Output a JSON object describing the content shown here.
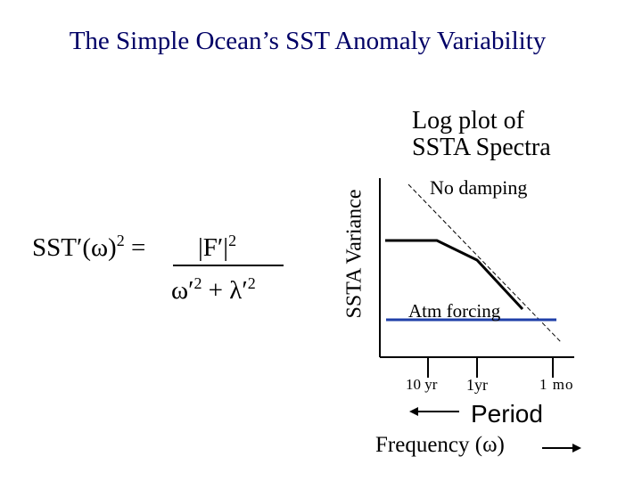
{
  "slide": {
    "title": "The Simple Ocean’s SST Anomaly Variability",
    "plot_caption_line1": "Log plot of",
    "plot_caption_line2": "SSTA Spectra"
  },
  "equation": {
    "lhs_base": "SST′(ω)",
    "lhs_exp": "2",
    "lhs_eq": " =",
    "numerator_base": "|F′|",
    "numerator_exp": "2",
    "denominator_w": "ω′",
    "denominator_w_exp": "2",
    "denominator_plus": " + λ′",
    "denominator_l_exp": "2"
  },
  "plot": {
    "y_axis_label": "SSTA Variance",
    "curve_label_no_damping": "No damping",
    "curve_label_atm_forcing": "Atm forcing",
    "x_ticks": [
      "10 yr",
      "1yr",
      "1 mo"
    ],
    "period_label": "Period",
    "frequency_label": "Frequency (ω)",
    "colors": {
      "title": "#000066",
      "atm_forcing_line": "#1f3fa8",
      "curves": "#000000"
    }
  }
}
